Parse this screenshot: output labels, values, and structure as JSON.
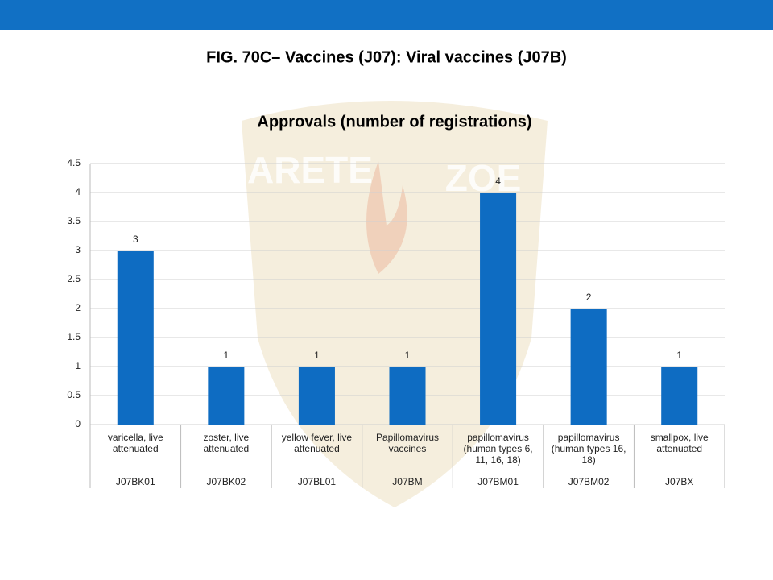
{
  "slide_title": "FIG. 70C– Vaccines (J07): Viral vaccines (J07B)",
  "watermark": [
    "ARETE",
    "ZOE"
  ],
  "chart_data": {
    "type": "bar",
    "title": "Approvals (number of registrations)",
    "categories": [
      "varicella, live attenuated",
      "zoster, live attenuated",
      "yellow fever, live attenuated",
      "Papillomavirus vaccines",
      "papillomavirus (human types 6, 11, 16, 18)",
      "papillomavirus (human types 16, 18)",
      "smallpox, live attenuated"
    ],
    "category_codes": [
      "J07BK01",
      "J07BK02",
      "J07BL01",
      "J07BM",
      "J07BM01",
      "J07BM02",
      "J07BX"
    ],
    "values": [
      3,
      1,
      1,
      1,
      4,
      2,
      1
    ],
    "color": "#0e6cc2",
    "ylim": [
      0,
      4.5
    ],
    "yticks": [
      0,
      0.5,
      1,
      1.5,
      2,
      2.5,
      3,
      3.5,
      4,
      4.5
    ],
    "grid": true,
    "data_labels": true
  }
}
